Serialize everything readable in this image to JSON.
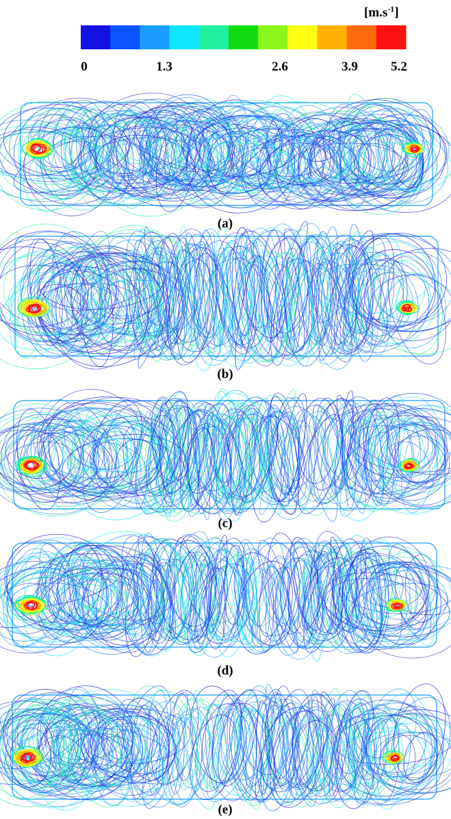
{
  "colorbar": {
    "unit_parts": [
      "[m.s",
      "-1",
      "]"
    ],
    "ticks": [
      "0",
      "1.3",
      "2.6",
      "3.9",
      "5.2"
    ],
    "colors": [
      "#1212e6",
      "#0a55ff",
      "#1a9cff",
      "#10e6ff",
      "#20f0a0",
      "#10dc10",
      "#8cf51a",
      "#ffff10",
      "#ffb000",
      "#ff6a10",
      "#ff1010"
    ]
  },
  "panels": [
    {
      "label": "(a)"
    },
    {
      "label": "(b)"
    },
    {
      "label": "(c)"
    },
    {
      "label": "(d)"
    },
    {
      "label": "(e)"
    }
  ]
}
